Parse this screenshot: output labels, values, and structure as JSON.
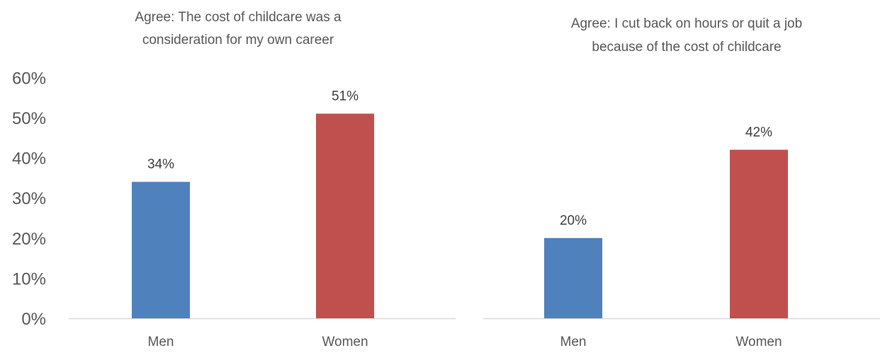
{
  "chart_data": [
    {
      "type": "bar",
      "title_lines": [
        "Agree: The cost of childcare was a",
        "consideration for my own career"
      ],
      "categories": [
        "Men",
        "Women"
      ],
      "values": [
        34,
        51
      ],
      "data_labels": [
        "34%",
        "51%"
      ],
      "colors": [
        "#4F81BD",
        "#C0504D"
      ],
      "ylim": [
        0,
        60
      ],
      "yticks": [
        0,
        10,
        20,
        30,
        40,
        50,
        60
      ],
      "ytick_labels": [
        "0%",
        "10%",
        "20%",
        "30%",
        "40%",
        "50%",
        "60%"
      ],
      "grid": false,
      "legend": "none"
    },
    {
      "type": "bar",
      "title_lines": [
        "Agree: I cut back on hours or quit a job",
        "because of the cost of childcare"
      ],
      "categories": [
        "Men",
        "Women"
      ],
      "values": [
        20,
        42
      ],
      "data_labels": [
        "20%",
        "42%"
      ],
      "colors": [
        "#4F81BD",
        "#C0504D"
      ],
      "ylim": [
        0,
        60
      ],
      "grid": false,
      "legend": "none"
    }
  ]
}
